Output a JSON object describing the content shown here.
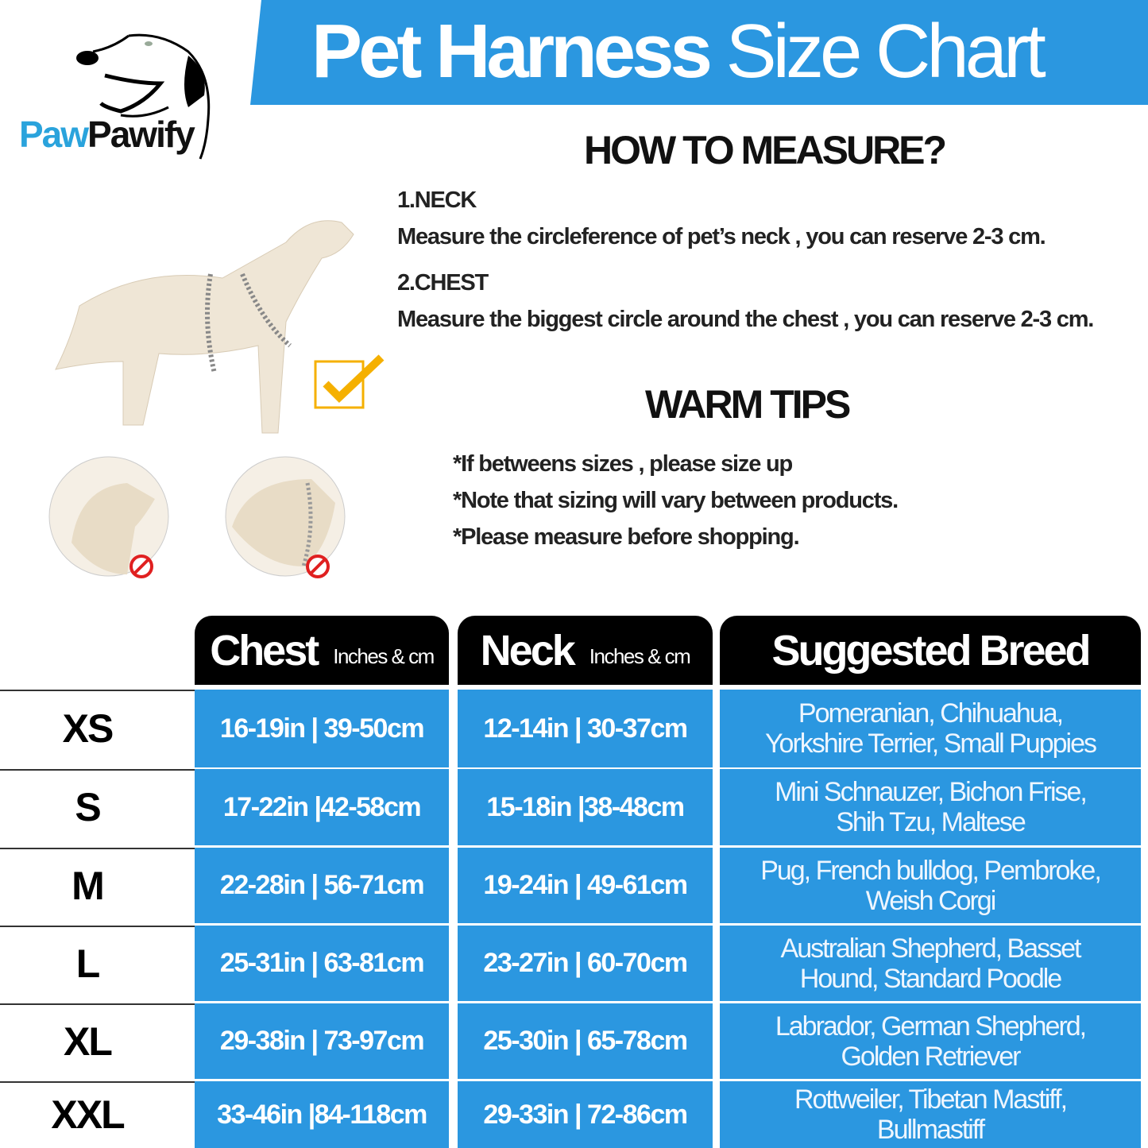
{
  "brand": {
    "part1": "Paw",
    "part2": "Pawify"
  },
  "title": {
    "bold": "Pet Harness",
    "light": "Size Chart"
  },
  "measure": {
    "heading": "HOW TO MEASURE?",
    "neck_label": "1.NECK",
    "neck_text": "Measure the circleference of pet’s neck , you can reserve 2-3 cm.",
    "chest_label": "2.CHEST",
    "chest_text": "Measure the biggest circle around the chest , you can reserve 2-3 cm."
  },
  "tips": {
    "heading": "WARM TIPS",
    "items": [
      "*If betweens sizes , please size up",
      "*Note that sizing will vary between products.",
      "*Please measure before shopping."
    ]
  },
  "colors": {
    "accent": "#2b97e0",
    "header": "#000000",
    "check": "#f5b000",
    "prohibited": "#e02020"
  },
  "table": {
    "headers": [
      {
        "title": "Chest",
        "sub": "Inches & cm"
      },
      {
        "title": "Neck",
        "sub": "Inches & cm"
      },
      {
        "title": "Suggested Breed"
      }
    ],
    "rows": [
      {
        "size": "XS",
        "chest": "16-19in | 39-50cm",
        "neck": "12-14in | 30-37cm",
        "breed1": "Pomeranian, Chihuahua,",
        "breed2": "Yorkshire Terrier, Small Puppies"
      },
      {
        "size": "S",
        "chest": "17-22in |42-58cm",
        "neck": "15-18in |38-48cm",
        "breed1": "Mini Schnauzer, Bichon Frise,",
        "breed2": "Shih Tzu, Maltese"
      },
      {
        "size": "M",
        "chest": "22-28in | 56-71cm",
        "neck": "19-24in | 49-61cm",
        "breed1": "Pug, French bulldog, Pembroke,",
        "breed2": "Weish Corgi"
      },
      {
        "size": "L",
        "chest": "25-31in | 63-81cm",
        "neck": "23-27in | 60-70cm",
        "breed1": "Australian Shepherd, Basset",
        "breed2": "Hound, Standard Poodle"
      },
      {
        "size": "XL",
        "chest": "29-38in | 73-97cm",
        "neck": "25-30in | 65-78cm",
        "breed1": "Labrador, German Shepherd,",
        "breed2": "Golden Retriever"
      },
      {
        "size": "XXL",
        "chest": "33-46in |84-118cm",
        "neck": "29-33in | 72-86cm",
        "breed1": "Rottweiler, Tibetan Mastiff,",
        "breed2": "Bullmastiff"
      }
    ]
  }
}
